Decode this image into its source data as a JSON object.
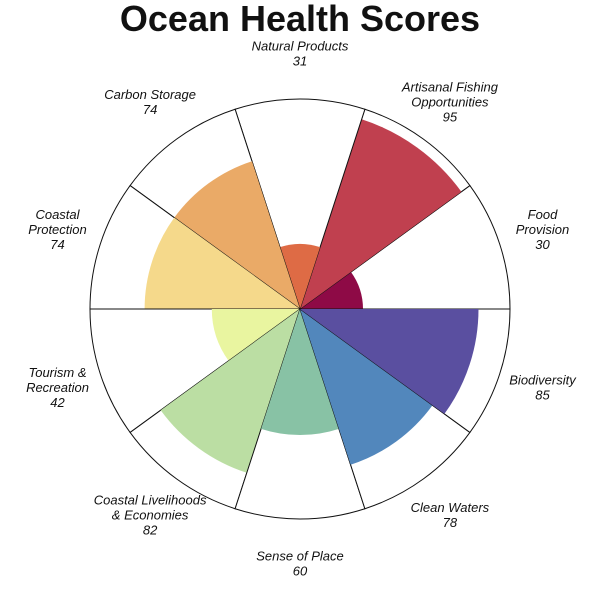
{
  "chart_data": {
    "type": "pie",
    "title": "Ocean Health Scores",
    "max_value": 100,
    "grid": false,
    "legend": "none",
    "categories": [
      "Food Provision",
      "Artisanal Fishing Opportunities",
      "Natural Products",
      "Carbon Storage",
      "Coastal Protection",
      "Tourism & Recreation",
      "Coastal Livelihoods & Economies",
      "Sense of Place",
      "Clean Waters",
      "Biodiversity"
    ],
    "label_lines": [
      [
        "Food",
        "Provision"
      ],
      [
        "Artisanal Fishing",
        "Opportunities"
      ],
      [
        "Natural Products"
      ],
      [
        "Carbon Storage"
      ],
      [
        "Coastal",
        "Protection"
      ],
      [
        "Tourism &",
        "Recreation"
      ],
      [
        "Coastal Livelihoods",
        "& Economies"
      ],
      [
        "Sense of Place"
      ],
      [
        "Clean Waters"
      ],
      [
        "Biodiversity"
      ]
    ],
    "values": [
      30,
      95,
      31,
      74,
      74,
      42,
      82,
      60,
      78,
      85
    ],
    "colors": [
      "#8e0a46",
      "#c0404f",
      "#de6b45",
      "#eaaa67",
      "#f5d98b",
      "#e9f5a0",
      "#bbdea3",
      "#88c2a5",
      "#5287bc",
      "#5a4fa0"
    ]
  }
}
